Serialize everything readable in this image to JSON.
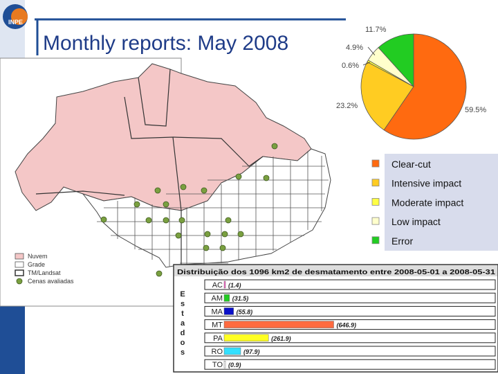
{
  "slide": {
    "title": "Monthly reports: May 2008",
    "logo_text": "INPE"
  },
  "colors": {
    "accent_blue": "#1f4e96",
    "cloud": "#f4c7c7",
    "clear_cut": "#ff6a10",
    "intensive": "#ffcc22",
    "moderate": "#ffff44",
    "low": "#ffffcc",
    "error": "#22cc22",
    "scene_dot": "#7aa040"
  },
  "map_legend": {
    "items": [
      {
        "label": "Nuvem",
        "icon": "cloud-swatch"
      },
      {
        "label": "Grade",
        "icon": "grid-swatch"
      },
      {
        "label": "TM/Landsat",
        "icon": "scene-swatch"
      },
      {
        "label": "Cenas avaliadas",
        "icon": "scene-dot"
      }
    ]
  },
  "impact_legend": {
    "items": [
      {
        "label": "Clear-cut",
        "color": "#ff6a10"
      },
      {
        "label": "Intensive impact",
        "color": "#ffcc22"
      },
      {
        "label": "Moderate impact",
        "color": "#ffff44"
      },
      {
        "label": "Low impact",
        "color": "#ffffcc"
      },
      {
        "label": "Error",
        "color": "#22cc22"
      }
    ]
  },
  "chart_data": [
    {
      "type": "pie",
      "slices": [
        {
          "label": "59.5%",
          "value": 59.5,
          "color": "#ff6a10"
        },
        {
          "label": "23.2%",
          "value": 23.2,
          "color": "#ffcc22"
        },
        {
          "label": "0.6%",
          "value": 0.6,
          "color": "#ffff44"
        },
        {
          "label": "4.9%",
          "value": 4.9,
          "color": "#ffffcc"
        },
        {
          "label": "11.7%",
          "value": 11.7,
          "color": "#22cc22"
        }
      ]
    },
    {
      "type": "bar",
      "title": "Distribuição dos 1096 km2 de desmatamento entre 2008-05-01 a 2008-05-31",
      "ylabel": "Estados",
      "categories": [
        "AC",
        "AM",
        "MA",
        "MT",
        "PA",
        "RO",
        "TO"
      ],
      "values": [
        1.4,
        31.5,
        55.8,
        646.9,
        261.9,
        97.9,
        0.9
      ],
      "value_labels": [
        "(1.4)",
        "(31.5)",
        "(55.8)",
        "(646.9)",
        "(261.9)",
        "(97.9)",
        "(0.9)"
      ],
      "colors": [
        "#ff66cc",
        "#22cc22",
        "#0a10c8",
        "#ff6a40",
        "#ffff22",
        "#33e0ff",
        "#ffffff"
      ],
      "xlim": [
        0,
        1600
      ]
    }
  ]
}
